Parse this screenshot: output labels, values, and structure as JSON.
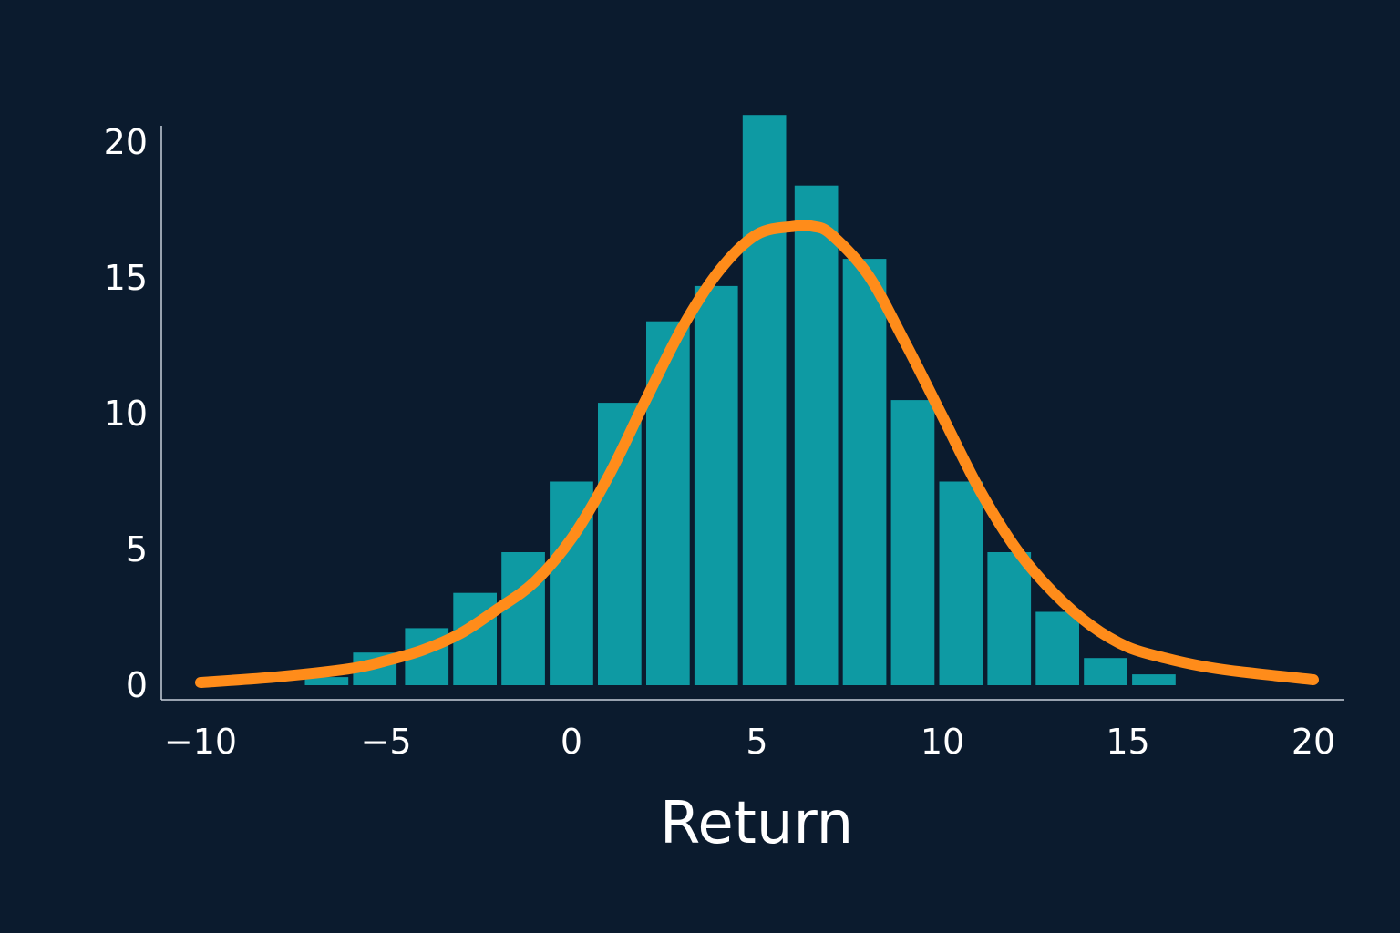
{
  "background_color": "#0b1b2e",
  "chart_data": {
    "type": "bar",
    "title": "",
    "xlabel": "Return",
    "ylabel": "",
    "xlim": [
      -10,
      20
    ],
    "ylim": [
      0,
      21
    ],
    "xticks": [
      -10,
      -5,
      0,
      5,
      10,
      15,
      20
    ],
    "xtick_labels": [
      "−10",
      "−5",
      "0",
      "5",
      "10",
      "15",
      "20"
    ],
    "yticks": [
      0,
      5,
      10,
      15,
      20
    ],
    "ytick_labels": [
      "0",
      "5",
      "10",
      "15",
      "20"
    ],
    "grid": false,
    "legend": "none",
    "bin_width": 1.32,
    "bin_centers": [
      -6.6,
      -5.3,
      -3.9,
      -2.6,
      -1.3,
      0.0,
      1.3,
      2.6,
      3.9,
      5.2,
      6.6,
      7.9,
      9.2,
      10.5,
      11.8,
      13.1,
      14.4,
      15.7
    ],
    "values": [
      0.3,
      1.2,
      2.1,
      3.4,
      4.9,
      7.5,
      10.4,
      13.4,
      14.7,
      21.0,
      18.4,
      15.7,
      10.5,
      7.5,
      4.9,
      2.7,
      1.0,
      0.4
    ],
    "bar_color": "#0e9aa3",
    "series": [
      {
        "type": "line",
        "color": "#ff8c1a",
        "x": [
          -10,
          -8,
          -6,
          -5,
          -4,
          -3,
          -2,
          -1,
          0,
          1,
          2,
          3,
          4,
          5,
          6,
          6.5,
          7,
          8,
          9,
          10,
          11,
          12,
          13,
          14,
          15,
          16,
          17,
          18,
          20
        ],
        "y": [
          0.1,
          0.3,
          0.6,
          0.9,
          1.3,
          1.9,
          2.8,
          3.8,
          5.4,
          7.7,
          10.5,
          13.2,
          15.3,
          16.6,
          16.9,
          16.9,
          16.6,
          15.1,
          12.6,
          9.9,
          7.2,
          5.0,
          3.4,
          2.2,
          1.4,
          1.0,
          0.7,
          0.5,
          0.2
        ]
      }
    ]
  }
}
